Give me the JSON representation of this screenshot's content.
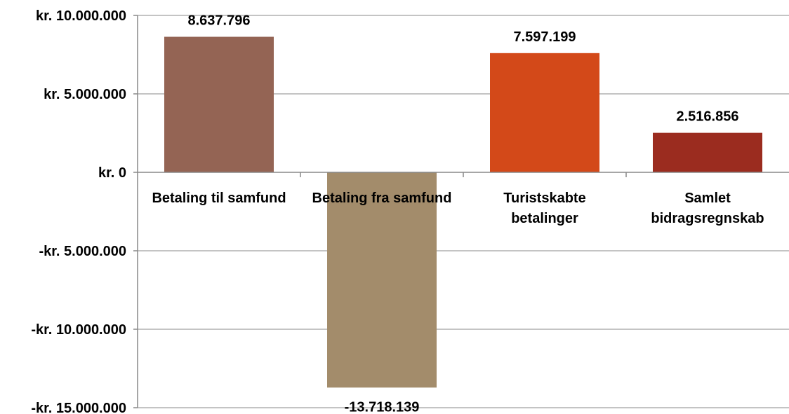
{
  "chart_data": {
    "type": "bar",
    "categories": [
      [
        "Betaling til samfund"
      ],
      [
        "Betaling fra samfund"
      ],
      [
        "Turistskabte",
        "betalinger"
      ],
      [
        "Samlet",
        "bidragsregnskab"
      ]
    ],
    "values": [
      8637796,
      -13718139,
      7597199,
      2516856
    ],
    "value_labels": [
      "8.637.796",
      "-13.718.139",
      "7.597.199",
      "2.516.856"
    ],
    "colors": [
      "#946454",
      "#a38c6b",
      "#d34919",
      "#9b2c1f"
    ],
    "ylim": [
      -15000000,
      10000000
    ],
    "yticks": [
      10000000,
      5000000,
      0,
      -5000000,
      -10000000,
      -15000000
    ],
    "ytick_labels": [
      "kr. 10.000.000",
      "kr. 5.000.000",
      "kr. 0",
      "-kr. 5.000.000",
      "-kr. 10.000.000",
      "-kr. 15.000.000"
    ],
    "grid": true,
    "title": "",
    "xlabel": "",
    "ylabel": ""
  }
}
